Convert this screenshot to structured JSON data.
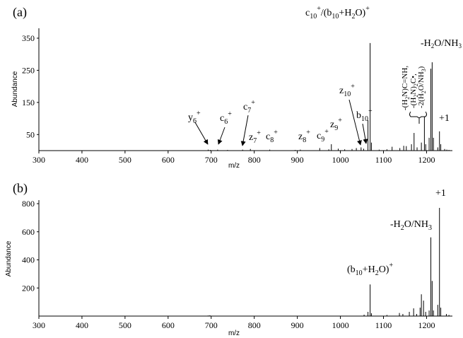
{
  "chart_data": [
    {
      "panel_label": "(a)",
      "type": "line",
      "xlabel": "m/z",
      "ylabel": "Abundance",
      "xlim": [
        300,
        1260
      ],
      "ylim": [
        0,
        360
      ],
      "xticks": [
        300,
        400,
        500,
        600,
        700,
        800,
        900,
        1000,
        1100,
        1200
      ],
      "yticks": [
        50,
        150,
        250,
        350
      ],
      "peaks": [
        [
          693,
          3
        ],
        [
          698,
          2
        ],
        [
          715,
          3
        ],
        [
          738,
          2
        ],
        [
          773,
          3
        ],
        [
          791,
          5
        ],
        [
          836,
          3
        ],
        [
          895,
          2
        ],
        [
          907,
          3
        ],
        [
          952,
          8
        ],
        [
          973,
          4
        ],
        [
          979,
          20
        ],
        [
          995,
          6
        ],
        [
          1010,
          4
        ],
        [
          1027,
          5
        ],
        [
          1037,
          8
        ],
        [
          1048,
          10
        ],
        [
          1054,
          6
        ],
        [
          1064,
          95
        ],
        [
          1069,
          335
        ],
        [
          1072,
          25
        ],
        [
          1090,
          3
        ],
        [
          1108,
          4
        ],
        [
          1120,
          12
        ],
        [
          1138,
          8
        ],
        [
          1147,
          15
        ],
        [
          1153,
          14
        ],
        [
          1165,
          20
        ],
        [
          1171,
          55
        ],
        [
          1178,
          10
        ],
        [
          1188,
          25
        ],
        [
          1195,
          105
        ],
        [
          1198,
          20
        ],
        [
          1206,
          40
        ],
        [
          1210,
          255
        ],
        [
          1213,
          275
        ],
        [
          1216,
          40
        ],
        [
          1226,
          10
        ],
        [
          1230,
          60
        ],
        [
          1233,
          20
        ],
        [
          1242,
          5
        ],
        [
          1247,
          3
        ],
        [
          1252,
          2
        ]
      ],
      "annotations": [
        {
          "base": "y",
          "sub": "6",
          "sup": "+",
          "arrow_to": [
            702,
            8
          ]
        },
        {
          "base": "c",
          "sub": "6",
          "sup": "+",
          "arrow_to": [
            711,
            8
          ]
        },
        {
          "base": "c",
          "sub": "7",
          "sup": "+",
          "arrow_to": [
            768,
            8
          ]
        },
        {
          "base": "z",
          "sub": "7",
          "sup": "+"
        },
        {
          "base": "c",
          "sub": "8",
          "sup": "+"
        },
        {
          "base": "z",
          "sub": "8",
          "sup": "+"
        },
        {
          "base": "c",
          "sub": "9",
          "sup": "+"
        },
        {
          "base": "z",
          "sub": "9",
          "sup": "+",
          "arrow_to": [
            978,
            22
          ]
        },
        {
          "base": "z",
          "sub": "10",
          "sup": "+",
          "arrow_to": [
            1038,
            10
          ]
        },
        {
          "base": "b",
          "sub": "10",
          "sup": "+",
          "arrow_to": [
            1052,
            10
          ]
        }
      ],
      "top_label": {
        "p1": "c",
        "p1_sub": "10",
        "p1_sup": "+",
        "p2": "/(b",
        "p2_sub": "10",
        "p3": "+H",
        "p3_sub": "2",
        "p4": "O)",
        "p4_sup": "+"
      },
      "loss_label": {
        "p1": "-H",
        "p1_sub": "2",
        "p2": "O/NH",
        "p2_sub": "3"
      },
      "plus1_label": "+1",
      "rotated_lines": [
        {
          "t1": "-(H",
          "t1_sub": "2",
          "t2": "N)C=NH,"
        },
        {
          "t1": "-(H",
          "t1_sub": "2",
          "t2": "N)",
          "t2_sub": "2",
          "t3": "C•,"
        },
        {
          "t1": "-2(H",
          "t1_sub": "2",
          "t2": "O/NH",
          "t2_sub": "3",
          "t3": ")"
        }
      ]
    },
    {
      "panel_label": "(b)",
      "type": "line",
      "xlabel": "m/z",
      "ylabel": "Abundance",
      "xlim": [
        300,
        1260
      ],
      "ylim": [
        0,
        800
      ],
      "xticks": [
        300,
        400,
        500,
        600,
        700,
        800,
        900,
        1000,
        1100,
        1200
      ],
      "yticks": [
        200,
        400,
        600,
        800
      ],
      "peaks": [
        [
          693,
          4
        ],
        [
          697,
          6
        ],
        [
          1055,
          10
        ],
        [
          1064,
          30
        ],
        [
          1069,
          225
        ],
        [
          1072,
          20
        ],
        [
          1108,
          8
        ],
        [
          1137,
          22
        ],
        [
          1145,
          15
        ],
        [
          1160,
          30
        ],
        [
          1170,
          55
        ],
        [
          1177,
          15
        ],
        [
          1185,
          60
        ],
        [
          1188,
          155
        ],
        [
          1193,
          110
        ],
        [
          1198,
          30
        ],
        [
          1206,
          40
        ],
        [
          1210,
          560
        ],
        [
          1213,
          250
        ],
        [
          1216,
          40
        ],
        [
          1226,
          80
        ],
        [
          1230,
          770
        ],
        [
          1233,
          60
        ],
        [
          1246,
          15
        ],
        [
          1252,
          8
        ]
      ],
      "b_label": {
        "p1": "(b",
        "p1_sub": "10",
        "p2": "+H",
        "p2_sub": "2",
        "p3": "O)",
        "p3_sup": "+"
      },
      "loss_label": {
        "p1": "-H",
        "p1_sub": "2",
        "p2": "O/NH",
        "p2_sub": "3"
      },
      "plus1_label": "+1"
    }
  ]
}
